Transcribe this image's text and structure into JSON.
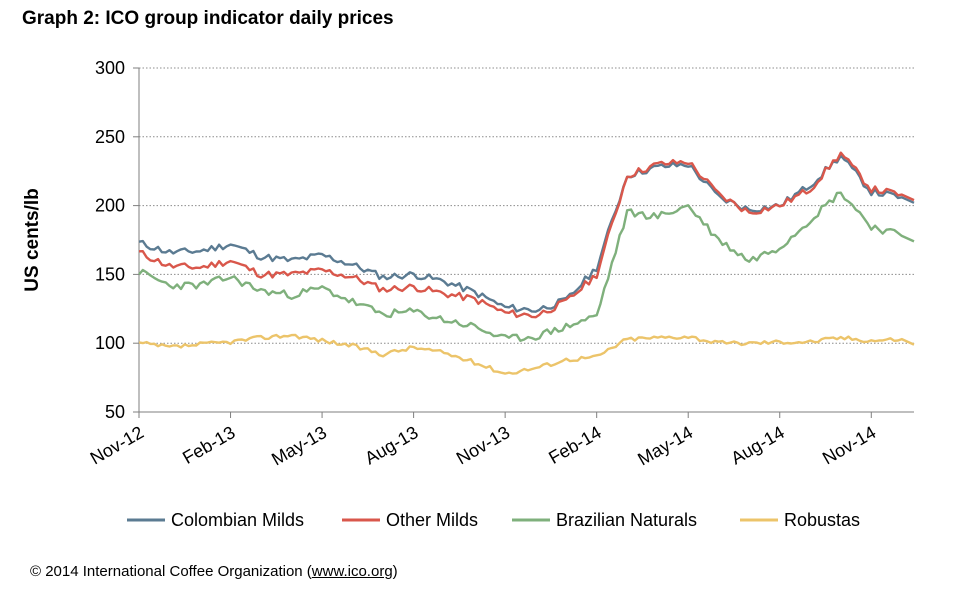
{
  "title": "Graph 2: ICO group indicator daily prices",
  "footer": {
    "prefix": "© 2014 International Coffee Organization (",
    "link": "www.ico.org",
    "suffix": ")"
  },
  "colors": {
    "Colombian Milds": "#5b7b92",
    "Other Milds": "#d9574b",
    "Brazilian Naturals": "#7fb07c",
    "Robustas": "#ecc46a"
  },
  "chart_data": {
    "type": "line",
    "ylabel": "US cents/lb",
    "xlabel": "",
    "ylim": [
      50,
      300
    ],
    "yticks": [
      50,
      100,
      150,
      200,
      250,
      300
    ],
    "xlim": [
      "Nov-12",
      "Dec-14"
    ],
    "xtick_labels": [
      "Nov-12",
      "Feb-13",
      "May-13",
      "Aug-13",
      "Nov-13",
      "Feb-14",
      "May-14",
      "Aug-14",
      "Nov-14"
    ],
    "grid": "horizontal dotted",
    "legend": "bottom",
    "x": [
      "Nov-12",
      "Dec-12",
      "Jan-13",
      "Feb-13",
      "Mar-13",
      "Apr-13",
      "May-13",
      "Jun-13",
      "Jul-13",
      "Aug-13",
      "Sep-13",
      "Oct-13",
      "Nov-13",
      "Dec-13",
      "Jan-14",
      "Feb-14",
      "Mar-14",
      "Apr-14",
      "May-14",
      "Jun-14",
      "Jul-14",
      "Aug-14",
      "Sep-14",
      "Oct-14",
      "Nov-14",
      "Dec-14"
    ],
    "series": [
      {
        "name": "Colombian Milds",
        "values": [
          173,
          166,
          167,
          172,
          163,
          160,
          164,
          157,
          148,
          150,
          145,
          137,
          126,
          124,
          131,
          155,
          222,
          228,
          230,
          206,
          197,
          200,
          215,
          236,
          210,
          206
        ]
      },
      {
        "name": "Other Milds",
        "values": [
          166,
          156,
          155,
          160,
          150,
          150,
          153,
          148,
          139,
          141,
          136,
          132,
          122,
          120,
          130,
          150,
          222,
          230,
          232,
          208,
          195,
          200,
          212,
          238,
          212,
          208
        ]
      },
      {
        "name": "Brazilian Naturals",
        "values": [
          152,
          142,
          142,
          148,
          138,
          135,
          140,
          130,
          121,
          123,
          117,
          112,
          103,
          105,
          112,
          120,
          195,
          192,
          200,
          175,
          160,
          170,
          190,
          210,
          185,
          178
        ]
      },
      {
        "name": "Robustas",
        "values": [
          100,
          97,
          99,
          101,
          104,
          106,
          102,
          98,
          92,
          97,
          93,
          86,
          78,
          82,
          88,
          90,
          103,
          104,
          105,
          100,
          100,
          101,
          101,
          104,
          102,
          103
        ]
      }
    ]
  }
}
